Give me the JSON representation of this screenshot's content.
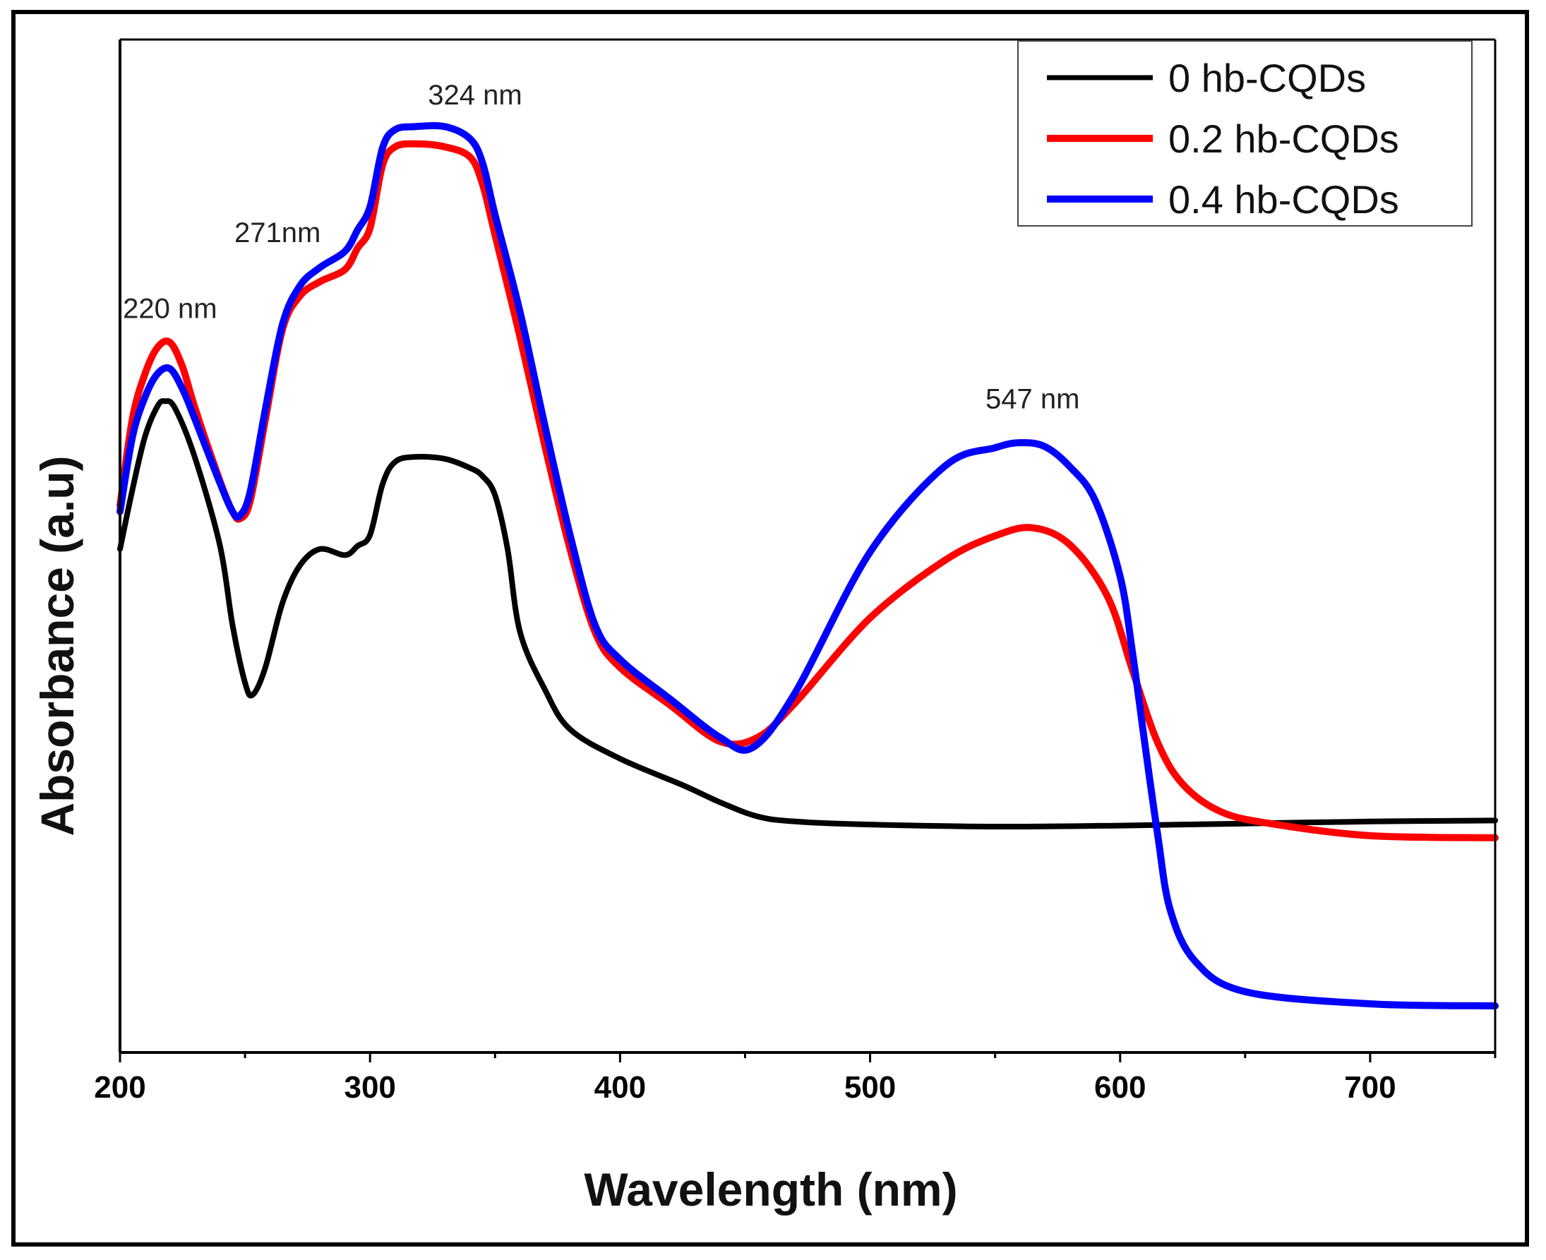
{
  "chart_data": {
    "type": "line",
    "title": "",
    "xlabel": "Wavelength (nm)",
    "ylabel": "Absorbance (a.u)",
    "xlim": [
      200,
      750
    ],
    "ylim": [
      0,
      1
    ],
    "xticks": [
      200,
      300,
      400,
      500,
      600,
      700
    ],
    "grid": false,
    "legend_position": "top-right",
    "series": [
      {
        "name": "0  hb-CQDs",
        "color": "#000000",
        "x": [
          200,
          205,
          210,
          215,
          218,
          222,
          230,
          240,
          245,
          250,
          253,
          258,
          265,
          272,
          280,
          290,
          295,
          300,
          305,
          310,
          318,
          330,
          340,
          345,
          350,
          355,
          360,
          370,
          380,
          400,
          425,
          440,
          455,
          470,
          500,
          550,
          600,
          650,
          700,
          750
        ],
        "y": [
          0.497,
          0.556,
          0.608,
          0.638,
          0.643,
          0.636,
          0.587,
          0.5,
          0.422,
          0.365,
          0.353,
          0.379,
          0.444,
          0.481,
          0.497,
          0.491,
          0.5,
          0.511,
          0.561,
          0.583,
          0.588,
          0.586,
          0.577,
          0.569,
          0.55,
          0.497,
          0.415,
          0.358,
          0.319,
          0.29,
          0.264,
          0.247,
          0.233,
          0.228,
          0.225,
          0.223,
          0.224,
          0.226,
          0.228,
          0.229
        ]
      },
      {
        "name": "0.2 hb-CQDs",
        "color": "#ff0000",
        "x": [
          200,
          205,
          210,
          215,
          220,
          225,
          230,
          240,
          245,
          248,
          252,
          258,
          265,
          272,
          280,
          290,
          295,
          300,
          305,
          310,
          318,
          330,
          340,
          345,
          350,
          360,
          370,
          380,
          390,
          400,
          420,
          440,
          455,
          470,
          500,
          530,
          550,
          565,
          580,
          595,
          605,
          615,
          625,
          640,
          660,
          700,
          750
        ],
        "y": [
          0.54,
          0.626,
          0.67,
          0.696,
          0.701,
          0.677,
          0.636,
          0.564,
          0.534,
          0.527,
          0.544,
          0.623,
          0.714,
          0.747,
          0.761,
          0.773,
          0.794,
          0.814,
          0.876,
          0.894,
          0.897,
          0.894,
          0.884,
          0.857,
          0.807,
          0.706,
          0.598,
          0.497,
          0.415,
          0.38,
          0.343,
          0.307,
          0.311,
          0.345,
          0.429,
          0.486,
          0.51,
          0.518,
          0.501,
          0.45,
          0.377,
          0.306,
          0.265,
          0.238,
          0.226,
          0.214,
          0.212
        ]
      },
      {
        "name": "0.4 hb-CQDs",
        "color": "#0000ff",
        "x": [
          200,
          205,
          210,
          215,
          220,
          225,
          230,
          240,
          245,
          248,
          252,
          258,
          265,
          272,
          280,
          290,
          295,
          300,
          305,
          310,
          318,
          330,
          340,
          345,
          350,
          360,
          370,
          380,
          390,
          400,
          420,
          440,
          453,
          470,
          500,
          530,
          550,
          560,
          570,
          580,
          590,
          600,
          605,
          610,
          615,
          620,
          630,
          650,
          700,
          750
        ],
        "y": [
          0.534,
          0.608,
          0.647,
          0.67,
          0.675,
          0.655,
          0.625,
          0.562,
          0.534,
          0.53,
          0.553,
          0.633,
          0.719,
          0.757,
          0.775,
          0.791,
          0.812,
          0.835,
          0.893,
          0.911,
          0.914,
          0.914,
          0.902,
          0.878,
          0.827,
          0.731,
          0.618,
          0.511,
          0.422,
          0.388,
          0.349,
          0.311,
          0.301,
          0.355,
          0.494,
          0.579,
          0.597,
          0.602,
          0.598,
          0.578,
          0.545,
          0.47,
          0.394,
          0.303,
          0.215,
          0.141,
          0.09,
          0.06,
          0.048,
          0.046
        ]
      }
    ],
    "annotations": [
      {
        "text": "220 nm",
        "x": 220,
        "y": 0.725
      },
      {
        "text": "271nm",
        "x": 263,
        "y": 0.8
      },
      {
        "text": "324 nm",
        "x": 342,
        "y": 0.936
      },
      {
        "text": "547 nm",
        "x": 565,
        "y": 0.636
      }
    ]
  }
}
